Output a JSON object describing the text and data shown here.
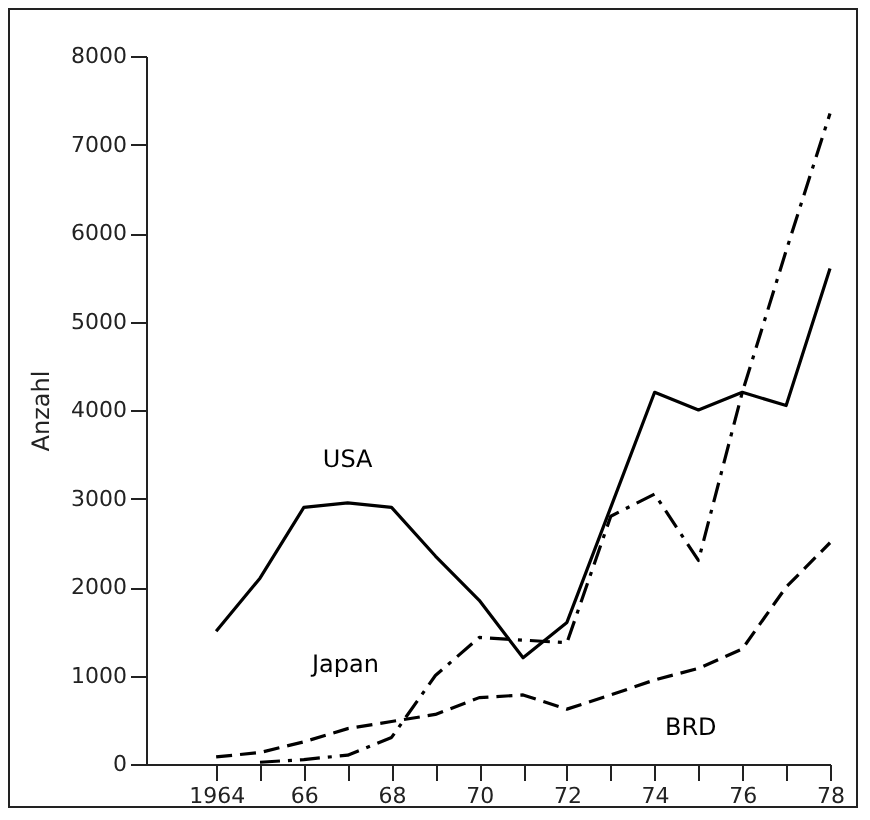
{
  "chart_data": {
    "type": "line",
    "ylabel": "Anzahl",
    "x": [
      1964,
      1965,
      1966,
      1967,
      1968,
      1969,
      1970,
      1971,
      1972,
      1973,
      1974,
      1975,
      1976,
      1977,
      1978
    ],
    "series": [
      {
        "name": "USA",
        "color": "#000000",
        "line_style": "solid",
        "values": [
          1500,
          2100,
          2900,
          2950,
          2900,
          2350,
          1850,
          1200,
          1600,
          2900,
          4200,
          4000,
          4200,
          4050,
          5600
        ]
      },
      {
        "name": "Japan",
        "color": "#000000",
        "line_style": "dashdot",
        "values": [
          null,
          20,
          50,
          100,
          300,
          1000,
          1430,
          1400,
          1370,
          2800,
          3050,
          2300,
          4200,
          5800,
          7350
        ]
      },
      {
        "name": "BRD",
        "color": "#000000",
        "line_style": "dashed",
        "values": [
          80,
          130,
          250,
          400,
          480,
          560,
          750,
          780,
          620,
          780,
          950,
          1080,
          1300,
          2000,
          2500
        ]
      }
    ],
    "xlim": [
      1962.4,
      1978
    ],
    "xticks": [
      {
        "value": 1964,
        "label": "1964"
      },
      {
        "value": 1965,
        "label": null
      },
      {
        "value": 1966,
        "label": "66"
      },
      {
        "value": 1967,
        "label": null
      },
      {
        "value": 1968,
        "label": "68"
      },
      {
        "value": 1969,
        "label": null
      },
      {
        "value": 1970,
        "label": "70"
      },
      {
        "value": 1971,
        "label": null
      },
      {
        "value": 1972,
        "label": "72"
      },
      {
        "value": 1973,
        "label": null
      },
      {
        "value": 1974,
        "label": "74"
      },
      {
        "value": 1975,
        "label": null
      },
      {
        "value": 1976,
        "label": "76"
      },
      {
        "value": 1977,
        "label": null
      },
      {
        "value": 1978,
        "label": "78"
      }
    ],
    "ylim": [
      0,
      8000
    ],
    "yticks": [
      0,
      1000,
      2000,
      3000,
      4000,
      5000,
      6000,
      7000,
      8000
    ],
    "grid": false,
    "legend": false,
    "marker": "none"
  }
}
